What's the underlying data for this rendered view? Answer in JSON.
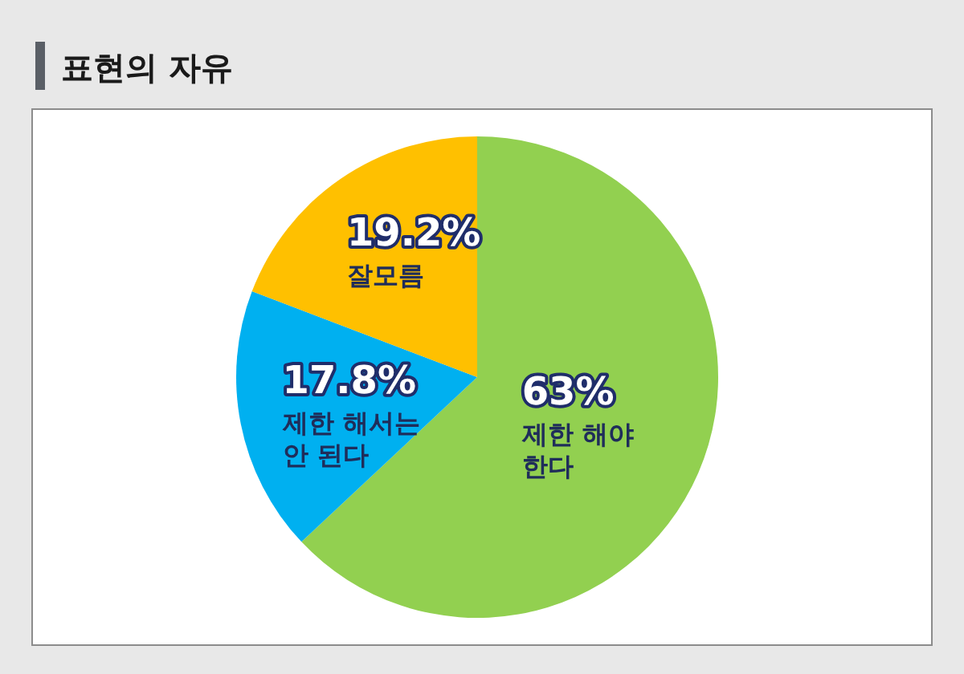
{
  "chart_data": {
    "type": "pie",
    "title": "표현의 자유",
    "categories": [
      "제한 해야\n한다",
      "제한 해서는\n안 된다",
      "잘모름"
    ],
    "values": [
      63,
      17.8,
      19.2
    ],
    "value_labels": [
      "63%",
      "17.8%",
      "19.2%"
    ],
    "colors": [
      "#92d050",
      "#00b0f0",
      "#ffc000"
    ]
  }
}
